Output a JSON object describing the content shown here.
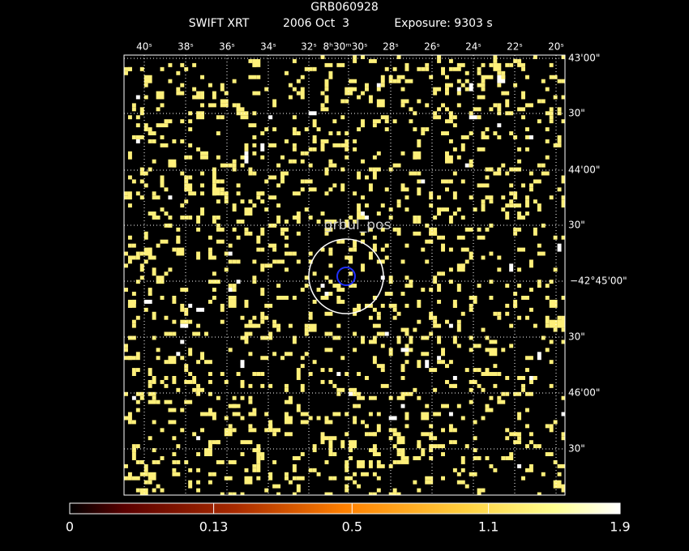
{
  "header": {
    "title": "GRB060928",
    "instrument": "SWIFT XRT",
    "date": "2006 Oct  3",
    "exposure": "Exposure: 9303 s"
  },
  "axes": {
    "ra_labels": [
      "40ˢ",
      "38ˢ",
      "36ˢ",
      "34ˢ",
      "32ˢ",
      "8ʰ30ᵐ30ˢ",
      "28ˢ",
      "26ˢ",
      "24ˢ",
      "22ˢ",
      "20ˢ"
    ],
    "dec_labels": [
      "43'00\"",
      "30\"",
      "44'00\"",
      "30\"",
      "−42°45'00\"",
      "30\"",
      "46'00\"",
      "30\""
    ]
  },
  "source": {
    "label": "grbul_pos"
  },
  "colorbar": {
    "scale": "sqrt",
    "clim": [
      0,
      1.9
    ],
    "ticks": [
      0,
      0.13,
      0.5,
      1.1,
      1.9
    ]
  }
}
